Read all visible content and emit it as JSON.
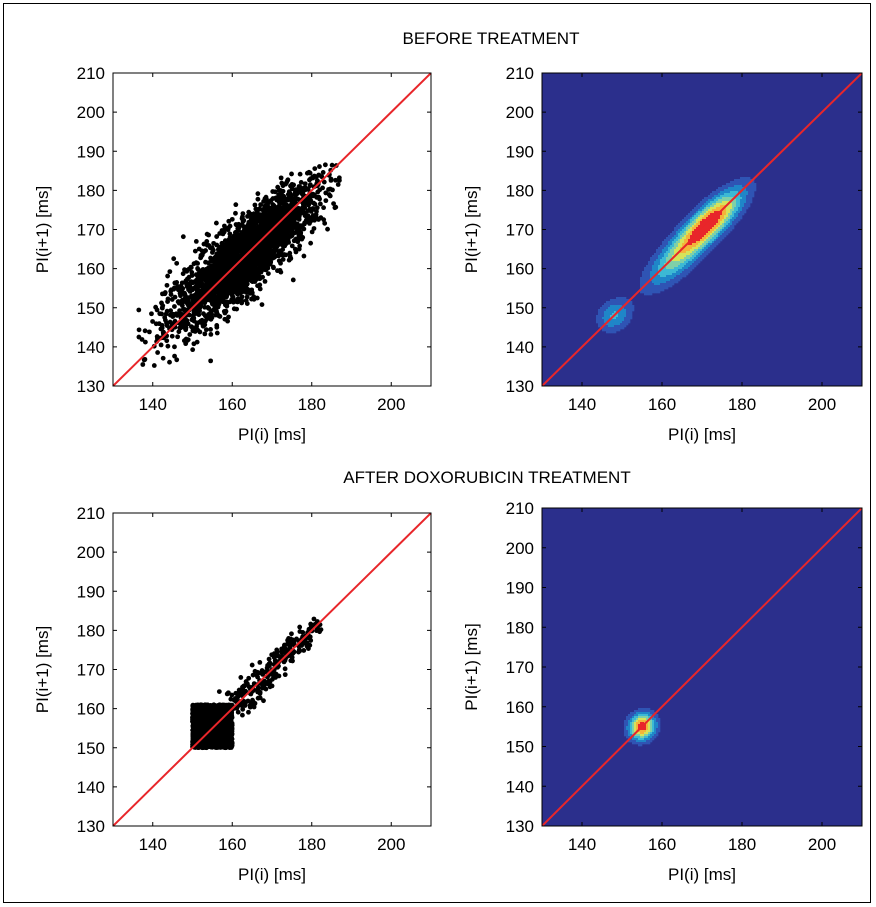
{
  "sections": [
    {
      "title": "BEFORE TREATMENT"
    },
    {
      "title": "AFTER DOXORUBICIN TREATMENT"
    }
  ],
  "colors": {
    "identity_line": "#e8262a",
    "scatter_points": "#000000",
    "contour_background": "#2b2f8c",
    "contour_levels": [
      "#2b2f8c",
      "#2f54b4",
      "#1f86c8",
      "#3cb9d4",
      "#7fd0a8",
      "#d6e35a",
      "#f4b43a",
      "#e8262a"
    ]
  },
  "chart_data": [
    {
      "id": "before-scatter",
      "type": "scatter",
      "xlabel": "PI(i) [ms]",
      "ylabel": "PI(i+1) [ms]",
      "xlim": [
        130,
        210
      ],
      "ylim": [
        130,
        210
      ],
      "xticks": [
        140,
        160,
        180,
        200
      ],
      "yticks": [
        130,
        140,
        150,
        160,
        170,
        180,
        190,
        200,
        210
      ],
      "identity_line": true,
      "cluster": {
        "center": [
          163,
          163
        ],
        "spread_along_diagonal": 12.5,
        "spread_across_diagonal": 3.6,
        "x_range": [
          135,
          187
        ],
        "y_range": [
          135,
          187
        ]
      }
    },
    {
      "id": "before-contour",
      "type": "heatmap",
      "xlabel": "PI(i) [ms]",
      "ylabel": "PI(i+1) [ms]",
      "xlim": [
        130,
        210
      ],
      "ylim": [
        130,
        210
      ],
      "xticks": [
        140,
        160,
        180,
        200
      ],
      "yticks": [
        130,
        140,
        150,
        160,
        170,
        180,
        190,
        200,
        210
      ],
      "identity_line": true,
      "density_peaks": [
        {
          "center": [
            172,
            172
          ],
          "sigma_along": 7.5,
          "sigma_across": 2.6,
          "weight": 1.0
        },
        {
          "center": [
            163,
            162
          ],
          "sigma_along": 7.0,
          "sigma_across": 2.8,
          "weight": 0.45
        },
        {
          "center": [
            148,
            148
          ],
          "sigma_along": 3.2,
          "sigma_across": 2.6,
          "weight": 0.4
        }
      ]
    },
    {
      "id": "after-scatter",
      "type": "scatter",
      "xlabel": "PI(i) [ms]",
      "ylabel": "PI(i+1) [ms]",
      "xlim": [
        130,
        210
      ],
      "ylim": [
        130,
        210
      ],
      "xticks": [
        140,
        160,
        180,
        200
      ],
      "yticks": [
        130,
        140,
        150,
        160,
        170,
        180,
        190,
        200,
        210
      ],
      "identity_line": true,
      "cluster": {
        "block_x_range": [
          150,
          160
        ],
        "block_y_range": [
          150,
          161
        ],
        "tail_end": [
          182,
          182
        ],
        "x_range": [
          150,
          182
        ],
        "y_range": [
          150,
          182
        ]
      }
    },
    {
      "id": "after-contour",
      "type": "heatmap",
      "xlabel": "PI(i) [ms]",
      "ylabel": "PI(i+1) [ms]",
      "xlim": [
        130,
        210
      ],
      "ylim": [
        130,
        210
      ],
      "xticks": [
        140,
        160,
        180,
        200
      ],
      "yticks": [
        130,
        140,
        150,
        160,
        170,
        180,
        190,
        200,
        210
      ],
      "identity_line": true,
      "density_peaks": [
        {
          "center": [
            155,
            155
          ],
          "sigma_along": 2.4,
          "sigma_across": 2.2,
          "weight": 1.0
        }
      ]
    }
  ]
}
